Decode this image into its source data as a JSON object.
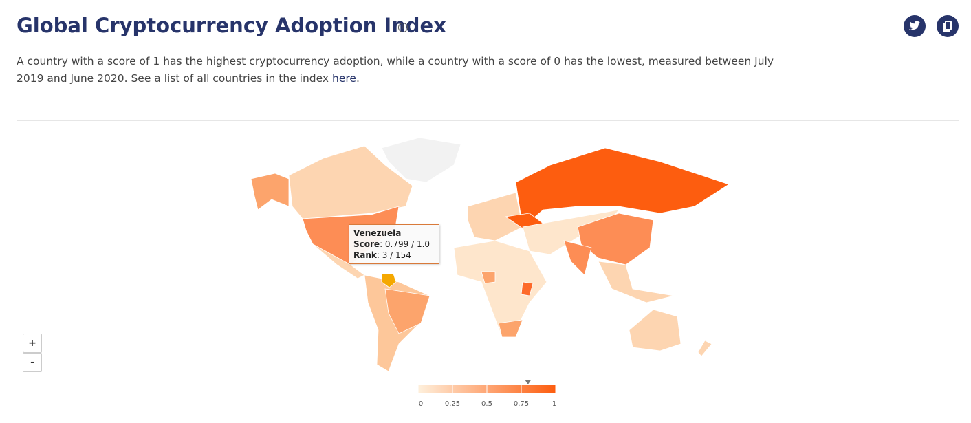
{
  "header": {
    "title": "Global Cryptocurrency Adoption Index",
    "description": "A country with a score of 1 has the highest cryptocurrency adoption, while a country with a score of 0 has the lowest, measured between July 2019 and June 2020. See a list of all countries in the index",
    "link": "here",
    "description_end": "."
  },
  "tooltip": {
    "country": "Venezuela",
    "score_label": "Score",
    "score": {
      "value": 0.799,
      "label": ": 0.799 / 1.0"
    },
    "rank_label": "Rank",
    "rank": ": 3 / 154"
  },
  "zoom": {
    "in": "+",
    "out": "-"
  },
  "legend": {
    "ticks": [
      0,
      0.25,
      0.5,
      0.75,
      1
    ]
  }
}
